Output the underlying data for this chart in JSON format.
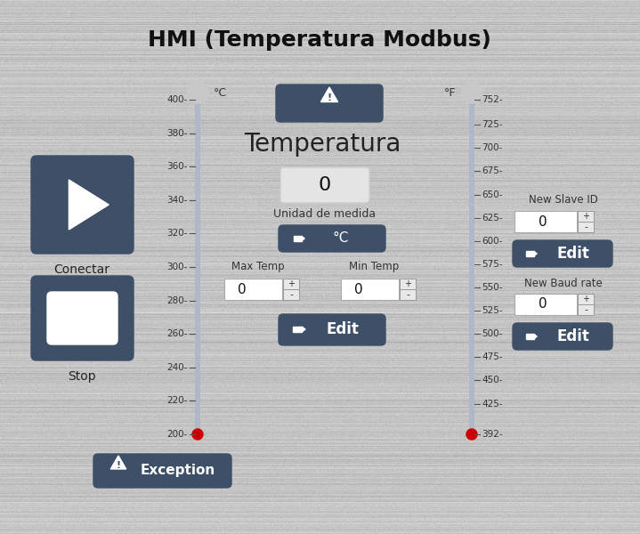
{
  "title": "HMI (Temperatura Modbus)",
  "bg_color": "#c0c4c8",
  "panel_color": "#3d5068",
  "white": "#ffffff",
  "light_gray": "#e8e8e8",
  "text_dark": "#222222",
  "red_dot": "#cc0000",
  "therm_color": "#b0b8c8",
  "celsius_ticks": [
    200,
    220,
    240,
    260,
    280,
    300,
    320,
    340,
    360,
    380,
    400
  ],
  "fahrenheit_ticks": [
    392,
    425,
    450,
    475,
    500,
    525,
    550,
    575,
    600,
    625,
    650,
    675,
    700,
    725,
    752
  ],
  "temp_display": "0",
  "unit_label": "°C",
  "max_temp_label": "Max Temp",
  "min_temp_label": "Min Temp",
  "conectar_label": "Conectar",
  "stop_label": "Stop",
  "edit_label": "Edit",
  "exception_label": "Exception",
  "new_slave_label": "New Slave ID",
  "new_baud_label": "New Baud rate",
  "temperatura_label": "Temperatura",
  "unidad_label": "Unidad de medida"
}
